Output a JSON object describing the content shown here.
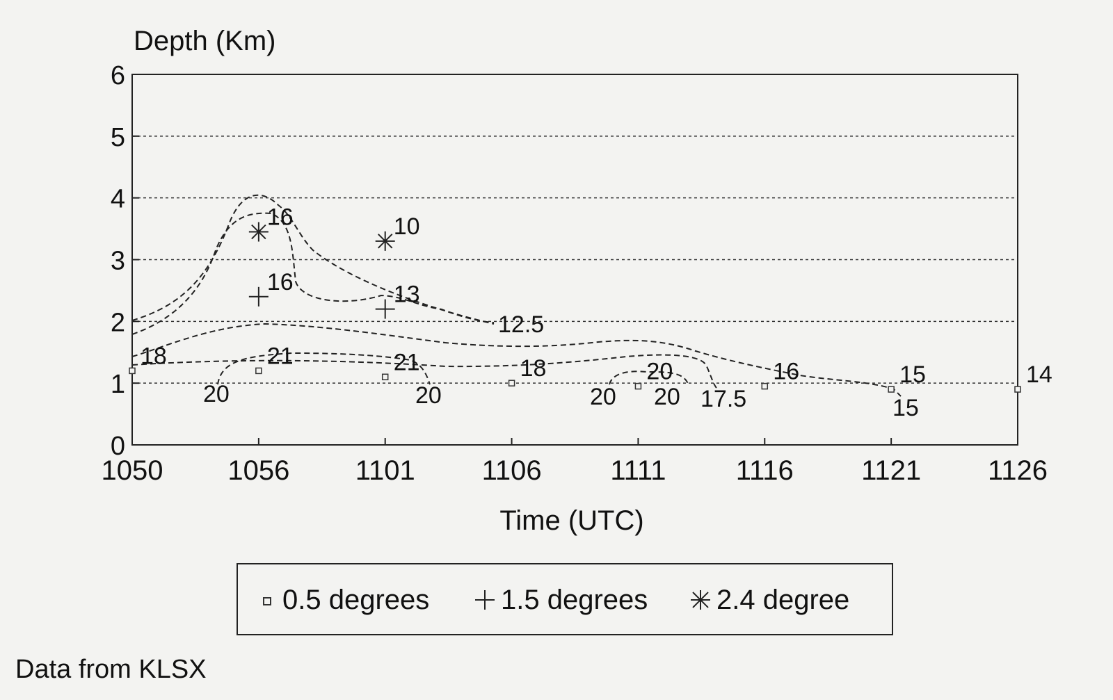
{
  "chart_data": {
    "type": "scatter",
    "ylabel": "Depth (Km)",
    "xlabel": "Time (UTC)",
    "x_tick_labels": [
      "1050",
      "1056",
      "1101",
      "1106",
      "1111",
      "1116",
      "1121",
      "1126"
    ],
    "y_ticks": [
      0,
      1,
      2,
      3,
      4,
      5,
      6
    ],
    "ylim": [
      0,
      6
    ],
    "grid": "horizontal dashed",
    "legend_placement": "bottom",
    "series": [
      {
        "name": "0.5 degrees",
        "marker": "square",
        "points": [
          {
            "x": "1050",
            "y": 1.2,
            "label": "18"
          },
          {
            "x": "1056",
            "y": 1.2,
            "label": "21"
          },
          {
            "x": "1101",
            "y": 1.1,
            "label": "21"
          },
          {
            "x": "1106",
            "y": 1.0,
            "label": "18"
          },
          {
            "x": "1111",
            "y": 0.95,
            "label": "20"
          },
          {
            "x": "1116",
            "y": 0.95,
            "label": "16"
          },
          {
            "x": "1121",
            "y": 0.9,
            "label": "15"
          },
          {
            "x": "1126",
            "y": 0.9,
            "label": "14"
          }
        ]
      },
      {
        "name": "1.5 degrees",
        "marker": "plus",
        "points": [
          {
            "x": "1056",
            "y": 2.4,
            "label": "16"
          },
          {
            "x": "1101",
            "y": 2.2,
            "label": "13"
          }
        ]
      },
      {
        "name": "2.4 degree",
        "marker": "asterisk",
        "points": [
          {
            "x": "1056",
            "y": 3.45,
            "label": "16"
          },
          {
            "x": "1101",
            "y": 3.3,
            "label": "10"
          }
        ]
      }
    ],
    "contour_labels": [
      "12.5",
      "20",
      "20",
      "20",
      "20",
      "17.5",
      "15"
    ],
    "note": "Data from KLSX"
  }
}
